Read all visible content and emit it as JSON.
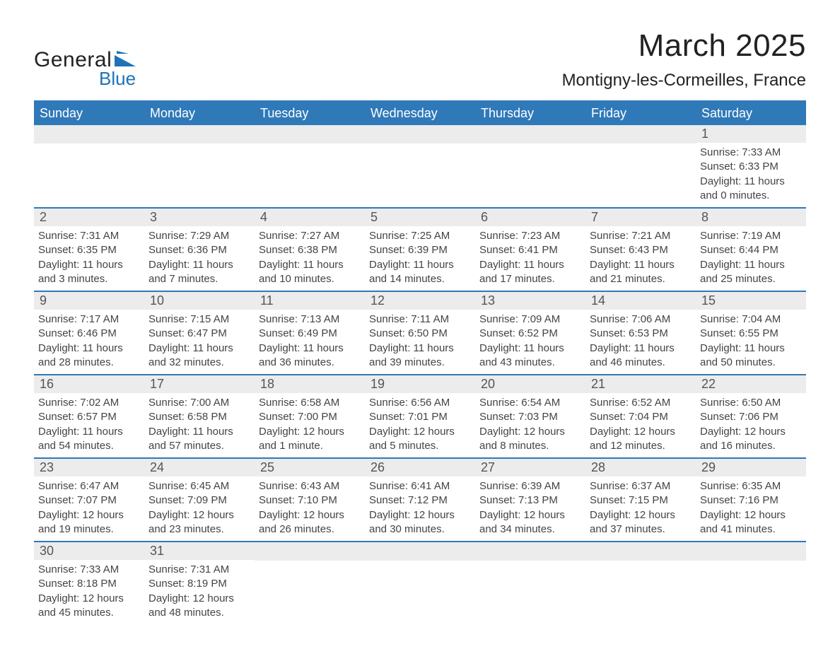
{
  "logo": {
    "text_general": "General",
    "text_blue": "Blue",
    "shape_color": "#1e72b8"
  },
  "title": {
    "month_year": "March 2025",
    "location": "Montigny-les-Cormeilles, France"
  },
  "colors": {
    "header_bg": "#2f79b9",
    "header_text": "#ffffff",
    "daynum_bg": "#ececec",
    "daynum_text": "#555555",
    "body_text": "#444444",
    "border": "#2f79b9",
    "page_bg": "#ffffff"
  },
  "typography": {
    "title_fontsize": 44,
    "subtitle_fontsize": 24,
    "weekday_fontsize": 18,
    "daynum_fontsize": 18,
    "body_fontsize": 15,
    "font_family": "Arial"
  },
  "weekdays": [
    "Sunday",
    "Monday",
    "Tuesday",
    "Wednesday",
    "Thursday",
    "Friday",
    "Saturday"
  ],
  "weeks": [
    [
      {
        "day": "",
        "sunrise": "",
        "sunset": "",
        "daylight1": "",
        "daylight2": ""
      },
      {
        "day": "",
        "sunrise": "",
        "sunset": "",
        "daylight1": "",
        "daylight2": ""
      },
      {
        "day": "",
        "sunrise": "",
        "sunset": "",
        "daylight1": "",
        "daylight2": ""
      },
      {
        "day": "",
        "sunrise": "",
        "sunset": "",
        "daylight1": "",
        "daylight2": ""
      },
      {
        "day": "",
        "sunrise": "",
        "sunset": "",
        "daylight1": "",
        "daylight2": ""
      },
      {
        "day": "",
        "sunrise": "",
        "sunset": "",
        "daylight1": "",
        "daylight2": ""
      },
      {
        "day": "1",
        "sunrise": "Sunrise: 7:33 AM",
        "sunset": "Sunset: 6:33 PM",
        "daylight1": "Daylight: 11 hours",
        "daylight2": "and 0 minutes."
      }
    ],
    [
      {
        "day": "2",
        "sunrise": "Sunrise: 7:31 AM",
        "sunset": "Sunset: 6:35 PM",
        "daylight1": "Daylight: 11 hours",
        "daylight2": "and 3 minutes."
      },
      {
        "day": "3",
        "sunrise": "Sunrise: 7:29 AM",
        "sunset": "Sunset: 6:36 PM",
        "daylight1": "Daylight: 11 hours",
        "daylight2": "and 7 minutes."
      },
      {
        "day": "4",
        "sunrise": "Sunrise: 7:27 AM",
        "sunset": "Sunset: 6:38 PM",
        "daylight1": "Daylight: 11 hours",
        "daylight2": "and 10 minutes."
      },
      {
        "day": "5",
        "sunrise": "Sunrise: 7:25 AM",
        "sunset": "Sunset: 6:39 PM",
        "daylight1": "Daylight: 11 hours",
        "daylight2": "and 14 minutes."
      },
      {
        "day": "6",
        "sunrise": "Sunrise: 7:23 AM",
        "sunset": "Sunset: 6:41 PM",
        "daylight1": "Daylight: 11 hours",
        "daylight2": "and 17 minutes."
      },
      {
        "day": "7",
        "sunrise": "Sunrise: 7:21 AM",
        "sunset": "Sunset: 6:43 PM",
        "daylight1": "Daylight: 11 hours",
        "daylight2": "and 21 minutes."
      },
      {
        "day": "8",
        "sunrise": "Sunrise: 7:19 AM",
        "sunset": "Sunset: 6:44 PM",
        "daylight1": "Daylight: 11 hours",
        "daylight2": "and 25 minutes."
      }
    ],
    [
      {
        "day": "9",
        "sunrise": "Sunrise: 7:17 AM",
        "sunset": "Sunset: 6:46 PM",
        "daylight1": "Daylight: 11 hours",
        "daylight2": "and 28 minutes."
      },
      {
        "day": "10",
        "sunrise": "Sunrise: 7:15 AM",
        "sunset": "Sunset: 6:47 PM",
        "daylight1": "Daylight: 11 hours",
        "daylight2": "and 32 minutes."
      },
      {
        "day": "11",
        "sunrise": "Sunrise: 7:13 AM",
        "sunset": "Sunset: 6:49 PM",
        "daylight1": "Daylight: 11 hours",
        "daylight2": "and 36 minutes."
      },
      {
        "day": "12",
        "sunrise": "Sunrise: 7:11 AM",
        "sunset": "Sunset: 6:50 PM",
        "daylight1": "Daylight: 11 hours",
        "daylight2": "and 39 minutes."
      },
      {
        "day": "13",
        "sunrise": "Sunrise: 7:09 AM",
        "sunset": "Sunset: 6:52 PM",
        "daylight1": "Daylight: 11 hours",
        "daylight2": "and 43 minutes."
      },
      {
        "day": "14",
        "sunrise": "Sunrise: 7:06 AM",
        "sunset": "Sunset: 6:53 PM",
        "daylight1": "Daylight: 11 hours",
        "daylight2": "and 46 minutes."
      },
      {
        "day": "15",
        "sunrise": "Sunrise: 7:04 AM",
        "sunset": "Sunset: 6:55 PM",
        "daylight1": "Daylight: 11 hours",
        "daylight2": "and 50 minutes."
      }
    ],
    [
      {
        "day": "16",
        "sunrise": "Sunrise: 7:02 AM",
        "sunset": "Sunset: 6:57 PM",
        "daylight1": "Daylight: 11 hours",
        "daylight2": "and 54 minutes."
      },
      {
        "day": "17",
        "sunrise": "Sunrise: 7:00 AM",
        "sunset": "Sunset: 6:58 PM",
        "daylight1": "Daylight: 11 hours",
        "daylight2": "and 57 minutes."
      },
      {
        "day": "18",
        "sunrise": "Sunrise: 6:58 AM",
        "sunset": "Sunset: 7:00 PM",
        "daylight1": "Daylight: 12 hours",
        "daylight2": "and 1 minute."
      },
      {
        "day": "19",
        "sunrise": "Sunrise: 6:56 AM",
        "sunset": "Sunset: 7:01 PM",
        "daylight1": "Daylight: 12 hours",
        "daylight2": "and 5 minutes."
      },
      {
        "day": "20",
        "sunrise": "Sunrise: 6:54 AM",
        "sunset": "Sunset: 7:03 PM",
        "daylight1": "Daylight: 12 hours",
        "daylight2": "and 8 minutes."
      },
      {
        "day": "21",
        "sunrise": "Sunrise: 6:52 AM",
        "sunset": "Sunset: 7:04 PM",
        "daylight1": "Daylight: 12 hours",
        "daylight2": "and 12 minutes."
      },
      {
        "day": "22",
        "sunrise": "Sunrise: 6:50 AM",
        "sunset": "Sunset: 7:06 PM",
        "daylight1": "Daylight: 12 hours",
        "daylight2": "and 16 minutes."
      }
    ],
    [
      {
        "day": "23",
        "sunrise": "Sunrise: 6:47 AM",
        "sunset": "Sunset: 7:07 PM",
        "daylight1": "Daylight: 12 hours",
        "daylight2": "and 19 minutes."
      },
      {
        "day": "24",
        "sunrise": "Sunrise: 6:45 AM",
        "sunset": "Sunset: 7:09 PM",
        "daylight1": "Daylight: 12 hours",
        "daylight2": "and 23 minutes."
      },
      {
        "day": "25",
        "sunrise": "Sunrise: 6:43 AM",
        "sunset": "Sunset: 7:10 PM",
        "daylight1": "Daylight: 12 hours",
        "daylight2": "and 26 minutes."
      },
      {
        "day": "26",
        "sunrise": "Sunrise: 6:41 AM",
        "sunset": "Sunset: 7:12 PM",
        "daylight1": "Daylight: 12 hours",
        "daylight2": "and 30 minutes."
      },
      {
        "day": "27",
        "sunrise": "Sunrise: 6:39 AM",
        "sunset": "Sunset: 7:13 PM",
        "daylight1": "Daylight: 12 hours",
        "daylight2": "and 34 minutes."
      },
      {
        "day": "28",
        "sunrise": "Sunrise: 6:37 AM",
        "sunset": "Sunset: 7:15 PM",
        "daylight1": "Daylight: 12 hours",
        "daylight2": "and 37 minutes."
      },
      {
        "day": "29",
        "sunrise": "Sunrise: 6:35 AM",
        "sunset": "Sunset: 7:16 PM",
        "daylight1": "Daylight: 12 hours",
        "daylight2": "and 41 minutes."
      }
    ],
    [
      {
        "day": "30",
        "sunrise": "Sunrise: 7:33 AM",
        "sunset": "Sunset: 8:18 PM",
        "daylight1": "Daylight: 12 hours",
        "daylight2": "and 45 minutes."
      },
      {
        "day": "31",
        "sunrise": "Sunrise: 7:31 AM",
        "sunset": "Sunset: 8:19 PM",
        "daylight1": "Daylight: 12 hours",
        "daylight2": "and 48 minutes."
      },
      {
        "day": "",
        "sunrise": "",
        "sunset": "",
        "daylight1": "",
        "daylight2": ""
      },
      {
        "day": "",
        "sunrise": "",
        "sunset": "",
        "daylight1": "",
        "daylight2": ""
      },
      {
        "day": "",
        "sunrise": "",
        "sunset": "",
        "daylight1": "",
        "daylight2": ""
      },
      {
        "day": "",
        "sunrise": "",
        "sunset": "",
        "daylight1": "",
        "daylight2": ""
      },
      {
        "day": "",
        "sunrise": "",
        "sunset": "",
        "daylight1": "",
        "daylight2": ""
      }
    ]
  ]
}
